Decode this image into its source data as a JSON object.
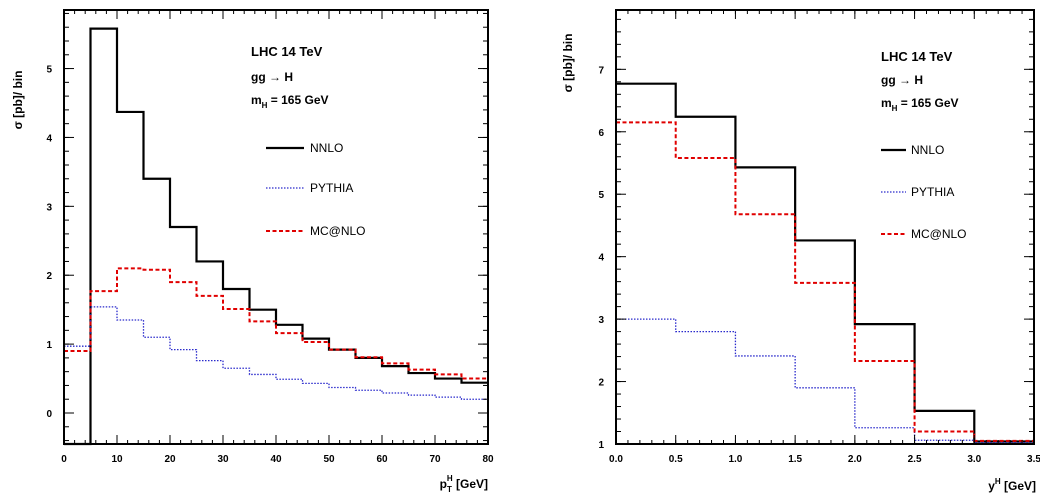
{
  "chart_data": [
    {
      "type": "line",
      "step": true,
      "ylabel": "σ [pb]/ bin",
      "xlabel": "p_T^H [GeV]",
      "xlabel_parts": {
        "base": "p",
        "sub": "T",
        "sup": "H",
        "unit": " [GeV]"
      },
      "xlim": [
        0,
        80
      ],
      "ylim": [
        -0.45,
        5.85
      ],
      "xticks": [
        0,
        10,
        20,
        30,
        40,
        50,
        60,
        70,
        80
      ],
      "yticks": [
        0,
        1,
        2,
        3,
        4,
        5
      ],
      "annotations": [
        "LHC 14 TeV",
        "gg → H",
        "m_H = 165 GeV"
      ],
      "annotation_parts": {
        "line1": "LHC 14 TeV",
        "line2_a": "gg",
        "line2_arrow": "→",
        "line2_b": "H",
        "line3_base": "m",
        "line3_sub": "H",
        "line3_rest": " = 165 GeV"
      },
      "legend": {
        "placement": "right-middle",
        "entries": [
          "NNLO",
          "PYTHIA",
          "MC@NLO"
        ]
      },
      "bin_edges": [
        0,
        5,
        10,
        15,
        20,
        25,
        30,
        35,
        40,
        45,
        50,
        55,
        60,
        65,
        70,
        75,
        80
      ],
      "series": [
        {
          "name": "NNLO",
          "color": "#000000",
          "style": "solid",
          "values": [
            -0.45,
            5.58,
            4.37,
            3.4,
            2.7,
            2.2,
            1.8,
            1.5,
            1.28,
            1.08,
            0.92,
            0.8,
            0.68,
            0.58,
            0.5,
            0.44
          ]
        },
        {
          "name": "PYTHIA",
          "color": "#2a2acc",
          "style": "dotted",
          "values": [
            0.97,
            1.54,
            1.35,
            1.1,
            0.92,
            0.76,
            0.65,
            0.56,
            0.49,
            0.43,
            0.37,
            0.33,
            0.29,
            0.26,
            0.23,
            0.2
          ]
        },
        {
          "name": "MC@NLO",
          "color": "#e00000",
          "style": "dashed",
          "values": [
            0.9,
            1.77,
            2.1,
            2.08,
            1.9,
            1.7,
            1.51,
            1.33,
            1.16,
            1.03,
            0.92,
            0.81,
            0.72,
            0.63,
            0.56,
            0.5
          ]
        }
      ]
    },
    {
      "type": "line",
      "step": true,
      "ylabel": "σ [pb]/ bin",
      "xlabel": "y^H [GeV]",
      "xlabel_parts": {
        "base": "y",
        "sup": "H",
        "unit": " [GeV]"
      },
      "xlim": [
        0,
        3.5
      ],
      "ylim": [
        1,
        7.95
      ],
      "xticks": [
        0.0,
        0.5,
        1.0,
        1.5,
        2.0,
        2.5,
        3.0,
        3.5
      ],
      "xtick_labels": [
        "0.0",
        "0.5",
        "1.0",
        "1.5",
        "2.0",
        "2.5",
        "3.0",
        "3.5"
      ],
      "yticks": [
        1,
        2,
        3,
        4,
        5,
        6,
        7
      ],
      "annotations": [
        "LHC 14 TeV",
        "gg → H",
        "m_H = 165 GeV"
      ],
      "annotation_parts": {
        "line1": "LHC 14 TeV",
        "line2_a": "gg",
        "line2_arrow": "→",
        "line2_b": "H",
        "line3_base": "m",
        "line3_sub": "H",
        "line3_rest": " = 165 GeV"
      },
      "legend": {
        "placement": "right-middle",
        "entries": [
          "NNLO",
          "PYTHIA",
          "MC@NLO"
        ]
      },
      "bin_edges": [
        0,
        0.5,
        1.0,
        1.5,
        2.0,
        2.5,
        3.0,
        3.5
      ],
      "series": [
        {
          "name": "NNLO",
          "color": "#000000",
          "style": "solid",
          "values": [
            6.77,
            6.24,
            5.43,
            4.26,
            2.92,
            1.53,
            1.04
          ]
        },
        {
          "name": "PYTHIA",
          "color": "#2a2acc",
          "style": "dotted",
          "values": [
            3.0,
            2.8,
            2.41,
            1.9,
            1.26,
            1.06,
            1.02
          ]
        },
        {
          "name": "MC@NLO",
          "color": "#e00000",
          "style": "dashed",
          "values": [
            6.15,
            5.58,
            4.68,
            3.58,
            2.33,
            1.2,
            1.05
          ]
        }
      ]
    }
  ]
}
